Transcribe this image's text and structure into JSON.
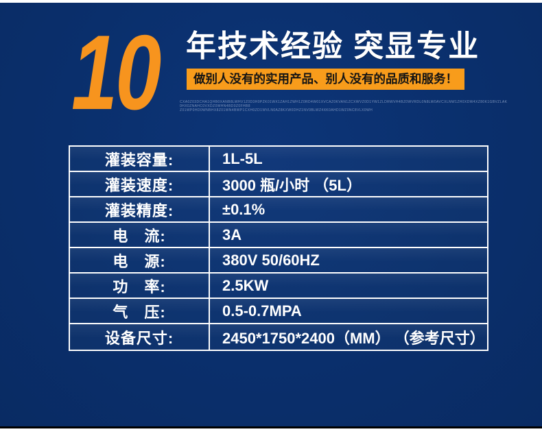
{
  "meta": {
    "background_navy": "#0a2f6c",
    "accent_orange": "#f7941e",
    "banner_bg": "#f89c1b",
    "banner_text_color": "#141414",
    "table_border_color": "#ffffff",
    "table_text_color": "#ffffff",
    "bottom_bar_color": "#000000",
    "page_margin_color": "#ffffff"
  },
  "header": {
    "big_number": "10",
    "title": "年技术经验 突显专业",
    "banner": "做别人没有的实用产品、别人没有的品质和服务！",
    "fine_print_line1": "CXA0Z03DCHA1QHB0XANB8LWHV1Z0D3H0PZK01WX1ZAH1ZWH1Z0RD4W01XVCAZ0KVAN1ZCXWVZ0D1YW1ZLDRWVH4BZ0WVRDL0N8LW0AVCXLNW1ZH0XDW4XZ80K1GBVZLAK0HX0ZNAHC0VXDZ0WHN4BD0Z0FHB8",
    "fine_print_line2": "Z01WP0HD0WNBHX8Z01WN4BWP1CXH0ZD1WVLN0AZ8KXW0DHZ1NV0BLWZ4XK0AHD1WZ0NC8VLX0WH"
  },
  "spec_table": {
    "rows": [
      {
        "label": "灌装容量:",
        "value": "1L-5L"
      },
      {
        "label": "灌装速度:",
        "value": "3000 瓶/小时 （5L）"
      },
      {
        "label": "灌装精度:",
        "value": "±0.1%"
      },
      {
        "label": "电　流:",
        "value": "3A"
      },
      {
        "label": "电　源:",
        "value": "380V 50/60HZ"
      },
      {
        "label": "功　率:",
        "value": "2.5KW"
      },
      {
        "label": "气　压:",
        "value": "0.5-0.7MPA"
      },
      {
        "label": "设备尺寸:",
        "value": "2450*1750*2400（MM） （参考尺寸）"
      }
    ]
  }
}
